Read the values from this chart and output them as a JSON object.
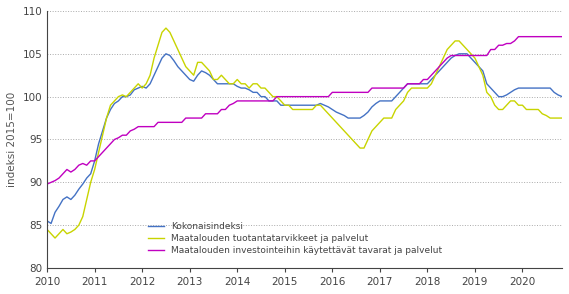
{
  "title": "",
  "ylabel": "indeksi 2015=100",
  "ylim": [
    80,
    110
  ],
  "yticks": [
    80,
    85,
    90,
    95,
    100,
    105,
    110
  ],
  "xlim_start": 2010,
  "n_months": 129,
  "line_colors": {
    "kokonaisindeksi": "#4472c4",
    "tuotantatarvikkeet": "#c8d400",
    "investointi": "#c000c0"
  },
  "legend_labels": [
    "Kokonaisindeksi",
    "Maatalouden tuotantatarvikkeet ja palvelut",
    "Maatalouden investointeihin käytettävät tavarat ja palvelut"
  ],
  "kokonaisindeksi": [
    85.5,
    85.2,
    86.5,
    87.2,
    88.0,
    88.3,
    88.0,
    88.5,
    89.2,
    89.8,
    90.5,
    91.0,
    92.5,
    94.5,
    96.0,
    97.5,
    98.5,
    99.2,
    99.5,
    100.0,
    100.0,
    100.2,
    100.8,
    101.0,
    101.2,
    101.0,
    101.5,
    102.5,
    103.5,
    104.5,
    105.0,
    104.8,
    104.2,
    103.5,
    103.0,
    102.5,
    102.0,
    101.8,
    102.5,
    103.0,
    102.8,
    102.5,
    102.0,
    101.5,
    101.5,
    101.5,
    101.5,
    101.5,
    101.2,
    101.0,
    101.0,
    100.8,
    100.5,
    100.5,
    100.0,
    100.0,
    99.5,
    99.5,
    99.5,
    99.0,
    99.0,
    99.0,
    99.0,
    99.0,
    99.0,
    99.0,
    99.0,
    99.0,
    99.0,
    99.2,
    99.0,
    98.8,
    98.5,
    98.2,
    98.0,
    97.8,
    97.5,
    97.5,
    97.5,
    97.5,
    97.8,
    98.2,
    98.8,
    99.2,
    99.5,
    99.5,
    99.5,
    99.5,
    100.0,
    100.5,
    101.0,
    101.5,
    101.5,
    101.5,
    101.5,
    101.5,
    101.5,
    102.0,
    102.5,
    103.0,
    103.5,
    104.0,
    104.5,
    104.8,
    105.0,
    105.0,
    105.0,
    104.5,
    104.0,
    103.5,
    103.0,
    101.5,
    101.0,
    100.5,
    100.0,
    100.0,
    100.2,
    100.5,
    100.8,
    101.0,
    101.0,
    101.0,
    101.0,
    101.0,
    101.0,
    101.0,
    101.0,
    101.0,
    100.5,
    100.2,
    100.0
  ],
  "tuotantatarvikkeet": [
    84.5,
    84.0,
    83.5,
    84.0,
    84.5,
    84.0,
    84.2,
    84.5,
    85.0,
    86.0,
    88.0,
    90.0,
    91.5,
    93.5,
    95.5,
    97.5,
    99.0,
    99.5,
    100.0,
    100.2,
    100.0,
    100.5,
    101.0,
    101.5,
    101.0,
    101.5,
    102.5,
    104.5,
    106.0,
    107.5,
    108.0,
    107.5,
    106.5,
    105.5,
    104.5,
    103.5,
    103.0,
    102.5,
    104.0,
    104.0,
    103.5,
    103.0,
    102.0,
    102.0,
    102.5,
    102.0,
    101.5,
    101.5,
    102.0,
    101.5,
    101.5,
    101.0,
    101.5,
    101.5,
    101.0,
    101.0,
    100.5,
    100.0,
    100.0,
    99.5,
    99.0,
    99.0,
    98.5,
    98.5,
    98.5,
    98.5,
    98.5,
    98.5,
    99.0,
    99.0,
    98.5,
    98.0,
    97.5,
    97.0,
    96.5,
    96.0,
    95.5,
    95.0,
    94.5,
    94.0,
    94.0,
    95.0,
    96.0,
    96.5,
    97.0,
    97.5,
    97.5,
    97.5,
    98.5,
    99.0,
    99.5,
    100.5,
    101.0,
    101.0,
    101.0,
    101.0,
    101.0,
    101.5,
    102.5,
    103.5,
    104.5,
    105.5,
    106.0,
    106.5,
    106.5,
    106.0,
    105.5,
    105.0,
    104.5,
    103.5,
    102.5,
    100.5,
    100.0,
    99.0,
    98.5,
    98.5,
    99.0,
    99.5,
    99.5,
    99.0,
    99.0,
    98.5,
    98.5,
    98.5,
    98.5,
    98.0,
    97.8,
    97.5,
    97.5,
    97.5,
    97.5
  ],
  "investointi": [
    89.8,
    90.0,
    90.2,
    90.5,
    91.0,
    91.5,
    91.2,
    91.5,
    92.0,
    92.2,
    92.0,
    92.5,
    92.5,
    93.0,
    93.5,
    94.0,
    94.5,
    95.0,
    95.2,
    95.5,
    95.5,
    96.0,
    96.2,
    96.5,
    96.5,
    96.5,
    96.5,
    96.5,
    97.0,
    97.0,
    97.0,
    97.0,
    97.0,
    97.0,
    97.0,
    97.5,
    97.5,
    97.5,
    97.5,
    97.5,
    98.0,
    98.0,
    98.0,
    98.0,
    98.5,
    98.5,
    99.0,
    99.2,
    99.5,
    99.5,
    99.5,
    99.5,
    99.5,
    99.5,
    99.5,
    99.5,
    99.5,
    99.5,
    100.0,
    100.0,
    100.0,
    100.0,
    100.0,
    100.0,
    100.0,
    100.0,
    100.0,
    100.0,
    100.0,
    100.0,
    100.0,
    100.0,
    100.5,
    100.5,
    100.5,
    100.5,
    100.5,
    100.5,
    100.5,
    100.5,
    100.5,
    100.5,
    101.0,
    101.0,
    101.0,
    101.0,
    101.0,
    101.0,
    101.0,
    101.0,
    101.0,
    101.5,
    101.5,
    101.5,
    101.5,
    102.0,
    102.0,
    102.5,
    103.0,
    103.5,
    104.0,
    104.5,
    104.8,
    104.8,
    104.8,
    104.8,
    104.8,
    104.8,
    104.8,
    104.8,
    104.8,
    104.8,
    105.5,
    105.5,
    106.0,
    106.0,
    106.2,
    106.2,
    106.5,
    107.0,
    107.0,
    107.0,
    107.0,
    107.0,
    107.0,
    107.0,
    107.0,
    107.0,
    107.0,
    107.0,
    107.0
  ]
}
